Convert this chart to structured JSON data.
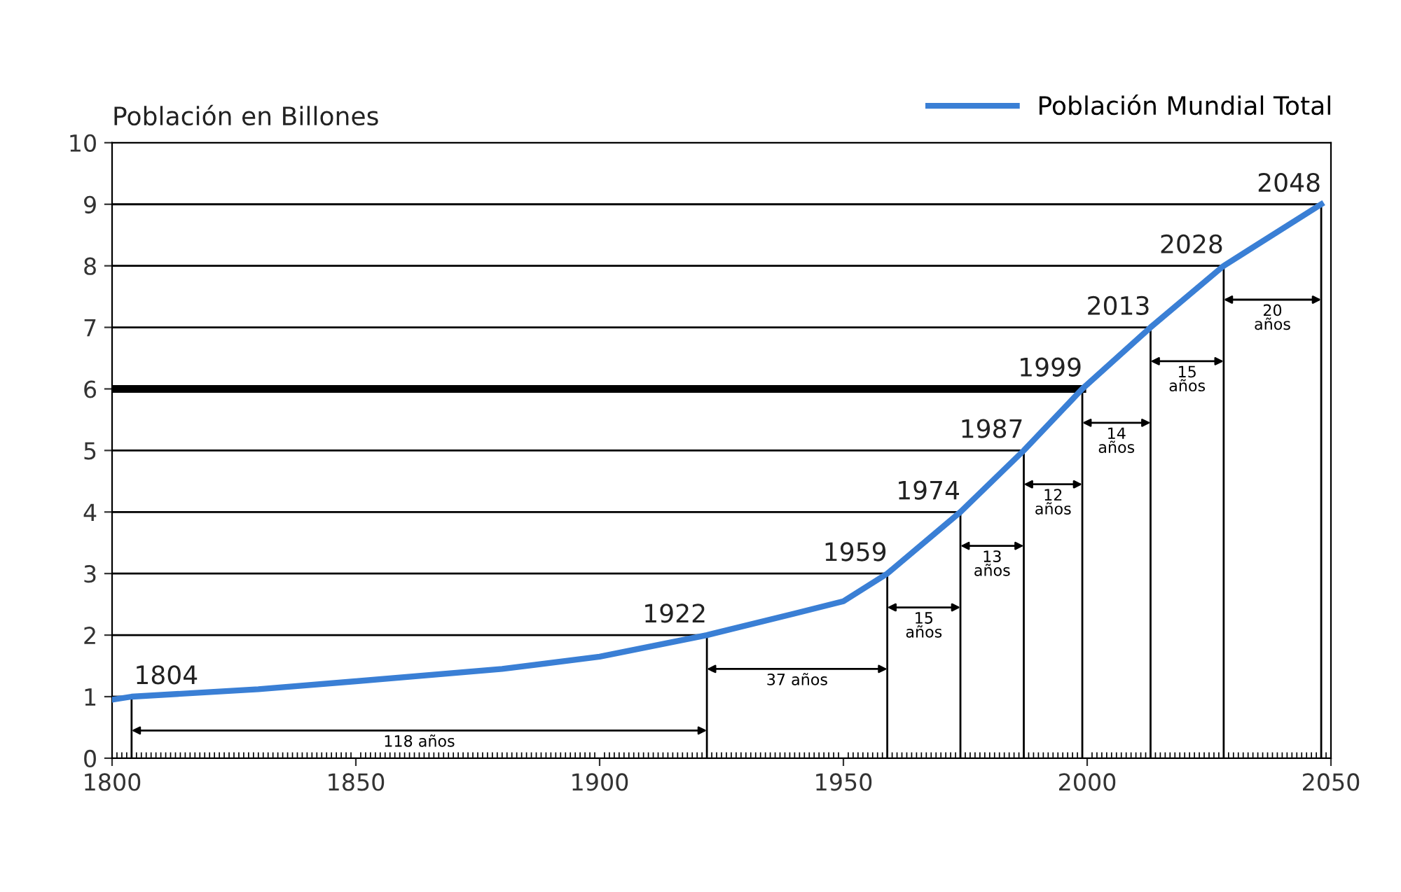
{
  "chart_data": {
    "type": "line",
    "ylabel": "Población en Billones",
    "xlim": [
      1800,
      2050
    ],
    "ylim": [
      0,
      10
    ],
    "xticks": [
      1800,
      1850,
      1900,
      1950,
      2000,
      2050
    ],
    "yticks": [
      0,
      1,
      2,
      3,
      4,
      5,
      6,
      7,
      8,
      9,
      10
    ],
    "legend": "top right",
    "marker": "none",
    "line_style": "solid",
    "grid": "y",
    "series": [
      {
        "name": "Población Mundial Total",
        "color": "#3a7fd5",
        "x": [
          1800,
          1804,
          1830,
          1850,
          1880,
          1900,
          1922,
          1940,
          1950,
          1959,
          1974,
          1987,
          1999,
          2013,
          2028,
          2048
        ],
        "values": [
          0.95,
          1,
          1.12,
          1.25,
          1.45,
          1.65,
          2,
          2.35,
          2.55,
          3,
          4,
          5,
          6,
          7,
          8,
          9
        ]
      }
    ],
    "ref_lines": [
      {
        "axis": "y",
        "value": 6,
        "color": "#000000"
      }
    ],
    "annotations": [
      {
        "text": "1804",
        "x": 1804,
        "y": 1
      },
      {
        "text": "1922",
        "x": 1922,
        "y": 2
      },
      {
        "text": "1959",
        "x": 1959,
        "y": 3
      },
      {
        "text": "1974",
        "x": 1974,
        "y": 4
      },
      {
        "text": "1987",
        "x": 1987,
        "y": 5
      },
      {
        "text": "1999",
        "x": 1999,
        "y": 6
      },
      {
        "text": "2013",
        "x": 2013,
        "y": 7
      },
      {
        "text": "2028",
        "x": 2028,
        "y": 8
      },
      {
        "text": "2048",
        "x": 2048,
        "y": 9
      },
      "118 años",
      "37 años",
      "15\naños",
      "13\naños",
      "12\naños",
      "14\naños",
      "15\naños",
      "20\naños"
    ]
  }
}
